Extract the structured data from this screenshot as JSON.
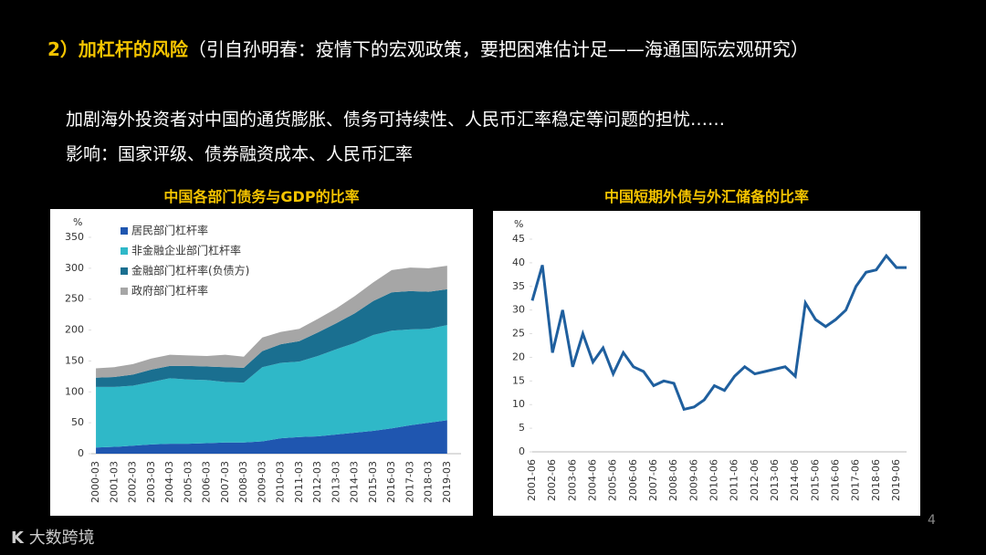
{
  "header": {
    "title": "2）加杠杆的风险",
    "source": "（引自孙明春：疫情下的宏观政策，要把困难估计足——海通国际宏观研究）"
  },
  "body": [
    "加剧海外投资者对中国的通货膨胀、债务可持续性、人民币汇率稳定等问题的担忧……",
    "影响：国家评级、债券融资成本、人民币汇率"
  ],
  "page_number": "4",
  "logo": "大数跨境",
  "chart_data": [
    {
      "type": "stacked_area",
      "title": "中国各部门债务与GDP的比率",
      "ylabel": "%",
      "categories": [
        "2000-03",
        "2001-03",
        "2002-03",
        "2003-03",
        "2004-03",
        "2005-03",
        "2006-03",
        "2007-03",
        "2008-03",
        "2009-03",
        "2010-03",
        "2011-03",
        "2012-03",
        "2013-03",
        "2014-03",
        "2015-03",
        "2016-03",
        "2017-03",
        "2018-03",
        "2019-03"
      ],
      "series": [
        {
          "name": "居民部门杠杆率",
          "color": "#1f56b0",
          "values": [
            10,
            11,
            13,
            15,
            16,
            16,
            17,
            18,
            18,
            20,
            25,
            27,
            28,
            31,
            34,
            37,
            41,
            46,
            50,
            54
          ]
        },
        {
          "name": "非金融企业部门杠杆率",
          "color": "#2fb8c8",
          "values": [
            98,
            97,
            97,
            101,
            106,
            104,
            102,
            98,
            97,
            120,
            122,
            122,
            130,
            138,
            145,
            155,
            158,
            155,
            152,
            154
          ]
        },
        {
          "name": "金融部门杠杆率(负债方)",
          "color": "#1a6f90",
          "values": [
            15,
            16,
            18,
            20,
            20,
            22,
            22,
            24,
            24,
            26,
            30,
            33,
            38,
            42,
            48,
            55,
            62,
            62,
            60,
            58
          ]
        },
        {
          "name": "政府部门杠杆率",
          "color": "#a6a6a6",
          "values": [
            15,
            16,
            17,
            18,
            18,
            17,
            17,
            20,
            18,
            22,
            20,
            20,
            22,
            24,
            28,
            30,
            36,
            38,
            38,
            38
          ]
        }
      ],
      "ylim": [
        0,
        350
      ],
      "yticks": [
        0,
        50,
        100,
        150,
        200,
        250,
        300,
        350
      ],
      "legend": "top-left"
    },
    {
      "type": "line",
      "title": "中国短期外债与外汇储备的比率",
      "ylabel": "%",
      "categories": [
        "2001-06",
        null,
        "2002-06",
        null,
        "2003-06",
        null,
        "2004-06",
        null,
        "2005-06",
        null,
        "2006-06",
        null,
        "2007-06",
        null,
        "2008-06",
        null,
        "2009-06",
        null,
        "2010-06",
        null,
        "2011-06",
        null,
        "2012-06",
        null,
        "2013-06",
        null,
        "2014-06",
        null,
        "2015-06",
        null,
        "2016-06",
        null,
        "2017-06",
        null,
        "2018-06",
        null,
        "2019-06",
        null
      ],
      "series": [
        {
          "name": null,
          "color": "#1f5f9e",
          "values": [
            32,
            39.5,
            21,
            30,
            18,
            25,
            19,
            22,
            16.5,
            21,
            18,
            17,
            14,
            15,
            14.5,
            9,
            9.5,
            11,
            14,
            13,
            16,
            18,
            16.5,
            17,
            17.5,
            18,
            16,
            31.5,
            28,
            26.5,
            28,
            30,
            35,
            38,
            38.5,
            41.5,
            39,
            39
          ]
        }
      ],
      "ylim": [
        0,
        45
      ],
      "yticks": [
        0,
        5,
        10,
        15,
        20,
        25,
        30,
        35,
        40,
        45
      ]
    }
  ]
}
